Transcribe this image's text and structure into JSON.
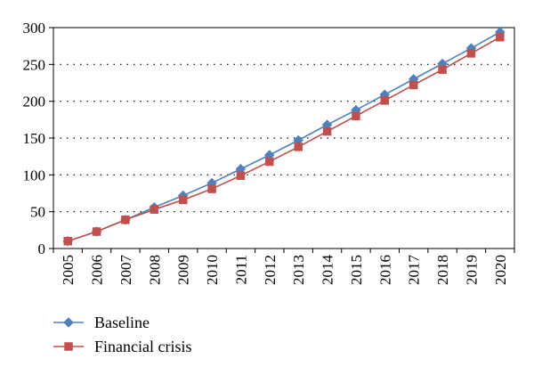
{
  "chart_data": {
    "type": "line",
    "title": "",
    "xlabel": "",
    "ylabel": "",
    "x": [
      "2005",
      "2006",
      "2007",
      "2008",
      "2009",
      "2010",
      "2011",
      "2012",
      "2013",
      "2014",
      "2015",
      "2016",
      "2017",
      "2018",
      "2019",
      "2020"
    ],
    "ylim": [
      0,
      300
    ],
    "yticks": [
      0,
      50,
      100,
      150,
      200,
      250,
      300
    ],
    "grid": "horizontal-dotted",
    "legend_position": "bottom-left",
    "series": [
      {
        "name": "Baseline",
        "color": "#4F81BD",
        "marker": "diamond",
        "values": [
          10,
          23,
          39,
          56,
          72,
          89,
          108,
          127,
          147,
          168,
          188,
          209,
          230,
          251,
          272,
          294
        ]
      },
      {
        "name": "Financial crisis",
        "color": "#C0504D",
        "marker": "square",
        "values": [
          10,
          23,
          39,
          53,
          66,
          81,
          99,
          118,
          138,
          159,
          180,
          201,
          222,
          243,
          265,
          287
        ]
      }
    ]
  }
}
